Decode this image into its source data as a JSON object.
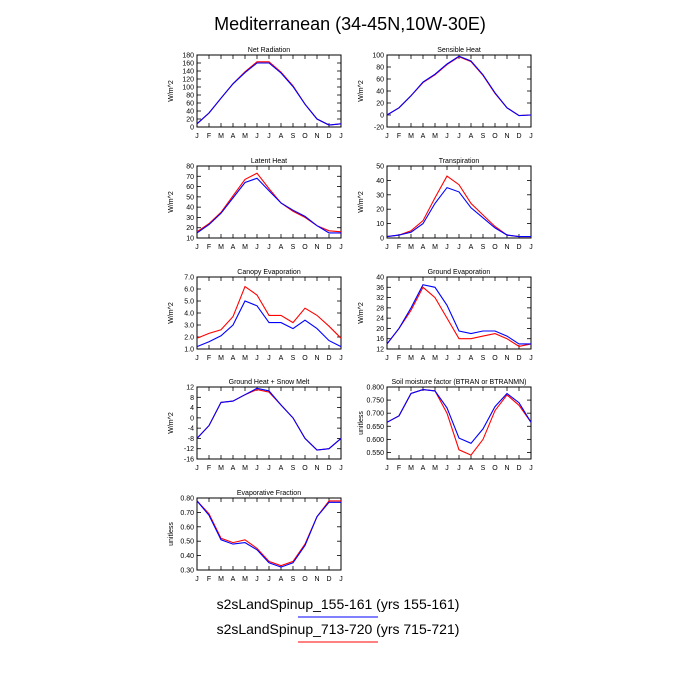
{
  "figure": {
    "title": "Mediterranean (34-45N,10W-30E)",
    "legend": [
      {
        "label": "s2sLandSpinup_155-161 (yrs 155-161)",
        "color": "#0000ff"
      },
      {
        "label": "s2sLandSpinup_713-720 (yrs 715-721)",
        "color": "#ff0000"
      }
    ]
  },
  "months": [
    "J",
    "F",
    "M",
    "A",
    "M",
    "J",
    "J",
    "A",
    "S",
    "O",
    "N",
    "D",
    "J"
  ],
  "chart_data": [
    {
      "type": "line",
      "title": "Net Radiation",
      "ylabel": "W/m^2",
      "ylim": [
        0,
        180
      ],
      "yticks": [
        0,
        20,
        40,
        60,
        80,
        100,
        120,
        140,
        160,
        180
      ],
      "yticklabels": [
        "0",
        "20",
        "40",
        "60",
        "80",
        "100",
        "120",
        "140",
        "160",
        "180"
      ],
      "series": [
        {
          "color": "#ff0000",
          "values": [
            8,
            35,
            72,
            108,
            138,
            163,
            163,
            137,
            103,
            57,
            20,
            5,
            8
          ]
        },
        {
          "color": "#0000ff",
          "values": [
            8,
            35,
            72,
            108,
            136,
            160,
            160,
            135,
            101,
            57,
            20,
            5,
            8
          ]
        }
      ]
    },
    {
      "type": "line",
      "title": "Sensible Heat",
      "ylabel": "W/m^2",
      "ylim": [
        -20,
        100
      ],
      "yticks": [
        -20,
        0,
        20,
        40,
        60,
        80,
        100
      ],
      "yticklabels": [
        "-20",
        "0",
        "20",
        "40",
        "60",
        "80",
        "100"
      ],
      "series": [
        {
          "color": "#ff0000",
          "values": [
            0,
            12,
            32,
            54,
            67,
            84,
            97,
            89,
            66,
            36,
            12,
            -1,
            0
          ]
        },
        {
          "color": "#0000ff",
          "values": [
            0,
            12,
            32,
            55,
            68,
            85,
            98,
            90,
            67,
            37,
            12,
            -1,
            0
          ]
        }
      ]
    },
    {
      "type": "line",
      "title": "Latent Heat",
      "ylabel": "W/m^2",
      "ylim": [
        10,
        80
      ],
      "yticks": [
        10,
        20,
        30,
        40,
        50,
        60,
        70,
        80
      ],
      "yticklabels": [
        "10",
        "20",
        "30",
        "40",
        "50",
        "60",
        "70",
        "80"
      ],
      "series": [
        {
          "color": "#ff0000",
          "values": [
            16,
            24,
            35,
            51,
            67,
            73,
            58,
            44,
            36,
            30,
            22,
            17,
            16
          ]
        },
        {
          "color": "#0000ff",
          "values": [
            15,
            23,
            34,
            49,
            64,
            68,
            56,
            44,
            37,
            31,
            22,
            15,
            15
          ]
        }
      ]
    },
    {
      "type": "line",
      "title": "Transpiration",
      "ylabel": "W/m^2",
      "ylim": [
        0,
        50
      ],
      "yticks": [
        0,
        10,
        20,
        30,
        40,
        50
      ],
      "yticklabels": [
        "0",
        "10",
        "20",
        "30",
        "40",
        "50"
      ],
      "series": [
        {
          "color": "#ff0000",
          "values": [
            1,
            2,
            5,
            12,
            28,
            43,
            37,
            24,
            16,
            8,
            2,
            1,
            1
          ]
        },
        {
          "color": "#0000ff",
          "values": [
            1,
            2,
            4,
            10,
            24,
            35,
            32,
            21,
            14,
            7,
            2,
            1,
            1
          ]
        }
      ]
    },
    {
      "type": "line",
      "title": "Canopy Evaporation",
      "ylabel": "W/m^2",
      "ylim": [
        1.0,
        7.0
      ],
      "yticks": [
        1.0,
        2.0,
        3.0,
        4.0,
        5.0,
        6.0,
        7.0
      ],
      "yticklabels": [
        "1.0",
        "2.0",
        "3.0",
        "4.0",
        "5.0",
        "6.0",
        "7.0"
      ],
      "series": [
        {
          "color": "#ff0000",
          "values": [
            1.9,
            2.3,
            2.6,
            3.7,
            6.2,
            5.5,
            3.8,
            3.8,
            3.2,
            4.4,
            3.8,
            2.9,
            1.9
          ]
        },
        {
          "color": "#0000ff",
          "values": [
            1.2,
            1.6,
            2.1,
            3.0,
            5.0,
            4.6,
            3.2,
            3.2,
            2.7,
            3.4,
            2.7,
            1.7,
            1.2
          ]
        }
      ]
    },
    {
      "type": "line",
      "title": "Ground Evaporation",
      "ylabel": "W/m^2",
      "ylim": [
        12,
        40
      ],
      "yticks": [
        12,
        16,
        20,
        24,
        28,
        32,
        36,
        40
      ],
      "yticklabels": [
        "12",
        "16",
        "20",
        "24",
        "28",
        "32",
        "36",
        "40"
      ],
      "series": [
        {
          "color": "#ff0000",
          "values": [
            14,
            20,
            27,
            36,
            32,
            24,
            16,
            16,
            17,
            18,
            16,
            13,
            14
          ]
        },
        {
          "color": "#0000ff",
          "values": [
            14,
            20,
            28,
            37,
            36,
            29,
            19,
            18,
            19,
            19,
            17,
            14,
            14
          ]
        }
      ]
    },
    {
      "type": "line",
      "title": "Ground Heat + Snow Melt",
      "ylabel": "W/m^2",
      "ylim": [
        -16,
        12
      ],
      "yticks": [
        -16,
        -12,
        -8,
        -4,
        0,
        4,
        8,
        12
      ],
      "yticklabels": [
        "-16",
        "-12",
        "-8",
        "-4",
        "0",
        "4",
        "8",
        "12"
      ],
      "series": [
        {
          "color": "#ff0000",
          "values": [
            -8,
            -3,
            6,
            6.5,
            9,
            11,
            10,
            5,
            0,
            -8,
            -12.5,
            -12,
            -8
          ]
        },
        {
          "color": "#0000ff",
          "values": [
            -8,
            -3,
            6,
            6.5,
            9,
            11.5,
            10.5,
            5,
            0,
            -8,
            -12.5,
            -12,
            -8
          ]
        }
      ]
    },
    {
      "type": "line",
      "title": "Soil moisture factor (BTRAN or BTRANMN)",
      "ylabel": "unitless",
      "ylim": [
        0.525,
        0.8
      ],
      "yticks": [
        0.55,
        0.6,
        0.65,
        0.7,
        0.75,
        0.8
      ],
      "yticklabels": [
        "0.550",
        "0.600",
        "0.650",
        "0.700",
        "0.750",
        "0.800"
      ],
      "series": [
        {
          "color": "#ff0000",
          "values": [
            0.665,
            0.69,
            0.775,
            0.79,
            0.785,
            0.7,
            0.56,
            0.54,
            0.6,
            0.71,
            0.77,
            0.73,
            0.665
          ]
        },
        {
          "color": "#0000ff",
          "values": [
            0.665,
            0.69,
            0.775,
            0.79,
            0.785,
            0.72,
            0.605,
            0.585,
            0.64,
            0.725,
            0.775,
            0.74,
            0.665
          ]
        }
      ]
    },
    {
      "type": "line",
      "title": "Evaporative Fraction",
      "ylabel": "unitless",
      "ylim": [
        0.3,
        0.8
      ],
      "yticks": [
        0.3,
        0.4,
        0.5,
        0.6,
        0.7,
        0.8
      ],
      "yticklabels": [
        "0.30",
        "0.40",
        "0.50",
        "0.60",
        "0.70",
        "0.80"
      ],
      "series": [
        {
          "color": "#ff0000",
          "values": [
            0.78,
            0.69,
            0.52,
            0.49,
            0.51,
            0.45,
            0.36,
            0.33,
            0.36,
            0.48,
            0.67,
            0.78,
            0.78
          ]
        },
        {
          "color": "#0000ff",
          "values": [
            0.78,
            0.68,
            0.51,
            0.48,
            0.49,
            0.44,
            0.35,
            0.32,
            0.35,
            0.47,
            0.67,
            0.77,
            0.77
          ]
        }
      ]
    }
  ]
}
